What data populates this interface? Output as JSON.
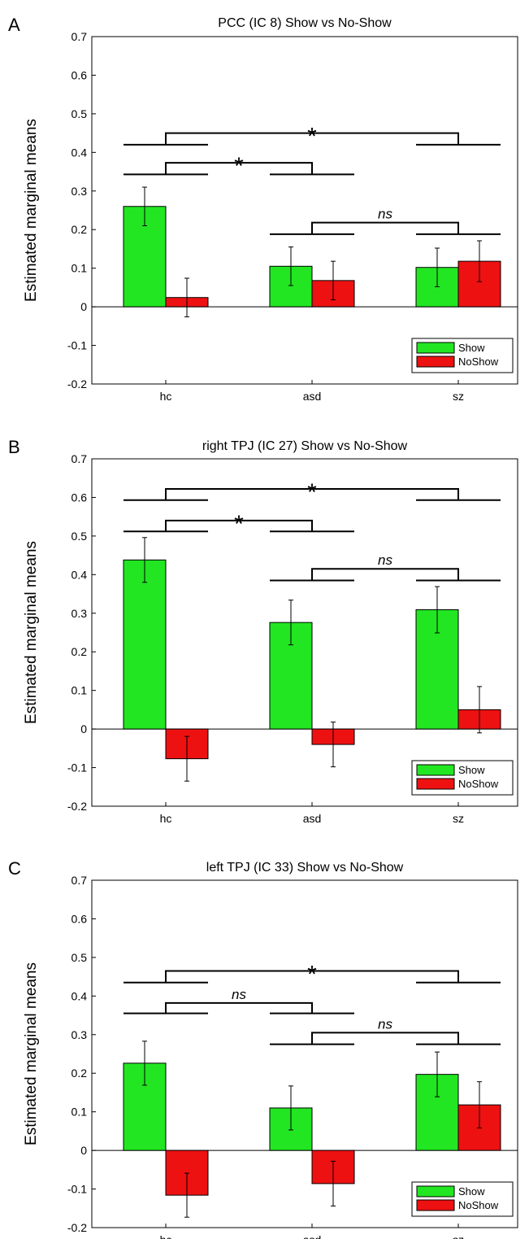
{
  "chart_data": [
    {
      "type": "bar",
      "panel_label": "A",
      "title": "PCC (IC 8) Show vs No-Show",
      "ylabel": "Estimated marginal means",
      "xlabel": "",
      "ylim": [
        -0.2,
        0.7
      ],
      "yticks": [
        "-0.2",
        "-0.1",
        "0",
        "0.1",
        "0.2",
        "0.3",
        "0.4",
        "0.5",
        "0.6",
        "0.7"
      ],
      "categories": [
        "hc",
        "asd",
        "sz"
      ],
      "series": [
        {
          "name": "Show",
          "color": "#22e622",
          "values": [
            0.26,
            0.105,
            0.102
          ],
          "errors": [
            0.05,
            0.05,
            0.05
          ]
        },
        {
          "name": "NoShow",
          "color": "#ee1111",
          "values": [
            0.024,
            0.068,
            0.118
          ],
          "errors": [
            0.05,
            0.05,
            0.053
          ]
        }
      ],
      "legend_position": "bottom-right",
      "grid": false,
      "comparisons": [
        {
          "groups": [
            "hc",
            "sz"
          ],
          "label": "*",
          "y": 0.42,
          "top": 0.45
        },
        {
          "groups": [
            "hc",
            "asd"
          ],
          "label": "*",
          "y": 0.343,
          "top": 0.373
        },
        {
          "groups": [
            "asd",
            "sz"
          ],
          "label": "ns",
          "y": 0.188,
          "top": 0.218
        }
      ]
    },
    {
      "type": "bar",
      "panel_label": "B",
      "title": "right TPJ (IC 27) Show vs No-Show",
      "ylabel": "Estimated marginal means",
      "xlabel": "",
      "ylim": [
        -0.2,
        0.7
      ],
      "yticks": [
        "-0.2",
        "-0.1",
        "0",
        "0.1",
        "0.2",
        "0.3",
        "0.4",
        "0.5",
        "0.6",
        "0.7"
      ],
      "categories": [
        "hc",
        "asd",
        "sz"
      ],
      "series": [
        {
          "name": "Show",
          "color": "#22e622",
          "values": [
            0.438,
            0.276,
            0.309
          ],
          "errors": [
            0.058,
            0.058,
            0.06
          ]
        },
        {
          "name": "NoShow",
          "color": "#ee1111",
          "values": [
            -0.077,
            -0.04,
            0.05
          ],
          "errors": [
            0.058,
            0.058,
            0.06
          ]
        }
      ],
      "legend_position": "bottom-right",
      "grid": false,
      "comparisons": [
        {
          "groups": [
            "hc",
            "sz"
          ],
          "label": "*",
          "y": 0.593,
          "top": 0.622
        },
        {
          "groups": [
            "hc",
            "asd"
          ],
          "label": "*",
          "y": 0.512,
          "top": 0.54
        },
        {
          "groups": [
            "asd",
            "sz"
          ],
          "label": "ns",
          "y": 0.385,
          "top": 0.415
        }
      ]
    },
    {
      "type": "bar",
      "panel_label": "C",
      "title": "left TPJ (IC 33) Show vs No-Show",
      "ylabel": "Estimated marginal means",
      "xlabel": "",
      "ylim": [
        -0.2,
        0.7
      ],
      "yticks": [
        "-0.2",
        "-0.1",
        "0",
        "0.1",
        "0.2",
        "0.3",
        "0.4",
        "0.5",
        "0.6",
        "0.7"
      ],
      "categories": [
        "hc",
        "asd",
        "sz"
      ],
      "series": [
        {
          "name": "Show",
          "color": "#22e622",
          "values": [
            0.226,
            0.11,
            0.197
          ],
          "errors": [
            0.057,
            0.057,
            0.058
          ]
        },
        {
          "name": "NoShow",
          "color": "#ee1111",
          "values": [
            -0.116,
            -0.086,
            0.118
          ],
          "errors": [
            0.057,
            0.058,
            0.06
          ]
        }
      ],
      "legend_position": "bottom-right",
      "grid": false,
      "comparisons": [
        {
          "groups": [
            "hc",
            "sz"
          ],
          "label": "*",
          "y": 0.435,
          "top": 0.465
        },
        {
          "groups": [
            "hc",
            "asd"
          ],
          "label": "ns",
          "y": 0.355,
          "top": 0.382
        },
        {
          "groups": [
            "asd",
            "sz"
          ],
          "label": "ns",
          "y": 0.275,
          "top": 0.305
        }
      ]
    }
  ]
}
